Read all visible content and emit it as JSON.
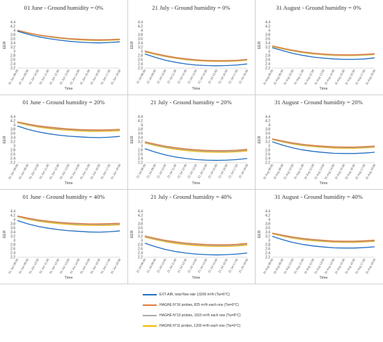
{
  "legend": {
    "items": [
      {
        "label": "EXT-AIR, total flow rate 13200 m³/h (Tw=6°C)",
        "color": "#1f6cc1"
      },
      {
        "label": "HAGHE N°16 probes, 825 m³/h each one (Tw=6°C)",
        "color": "#e07b3a"
      },
      {
        "label": "HAGHE N°13 probes, 1015 m³/h each one (Tw=6°C)",
        "color": "#a9a9a9"
      },
      {
        "label": "HAGHE N°11 probes, 1200 m³/h each one (Tw=6°C)",
        "color": "#f2b800"
      }
    ]
  },
  "chart_data": [
    {
      "type": "line",
      "title": "01   June - Ground humidity = 0%",
      "xlabel": "Time",
      "ylabel": "EER",
      "ylim": [
        2.2,
        4.4
      ],
      "categories": [
        "01 Jun 08:00",
        "01 Jun 09:00",
        "01 Jun 10:00",
        "01 Jun 11:00",
        "01 Jun 12:00",
        "01 Jun 13:00",
        "01 Jun 14:00",
        "01 Jun 15:00",
        "01 Jun 16:00",
        "01 Jun 17:00",
        "01 Jun 18:00"
      ],
      "series": [
        {
          "values": [
            3.97,
            3.83,
            3.71,
            3.62,
            3.55,
            3.49,
            3.45,
            3.42,
            3.41,
            3.43,
            3.46
          ]
        },
        {
          "values": [
            4.02,
            3.9,
            3.8,
            3.73,
            3.67,
            3.62,
            3.59,
            3.57,
            3.56,
            3.57,
            3.59
          ]
        },
        {
          "values": [
            4.01,
            3.89,
            3.79,
            3.71,
            3.65,
            3.6,
            3.57,
            3.55,
            3.54,
            3.55,
            3.57
          ]
        },
        {
          "values": [
            4.0,
            3.88,
            3.78,
            3.7,
            3.64,
            3.59,
            3.55,
            3.53,
            3.52,
            3.53,
            3.55
          ]
        }
      ]
    },
    {
      "type": "line",
      "title": "21   July - Ground humidity = 0%",
      "xlabel": "Time",
      "ylabel": "EER",
      "ylim": [
        2.2,
        4.4
      ],
      "categories": [
        "21 Jul 08:00",
        "21 Jul 09:00",
        "21 Jul 10:00",
        "21 Jul 11:00",
        "21 Jul 12:00",
        "21 Jul 13:00",
        "21 Jul 14:00",
        "21 Jul 15:00",
        "21 Jul 16:00",
        "21 Jul 17:00",
        "21 Jul 18:00"
      ],
      "series": [
        {
          "values": [
            2.88,
            2.72,
            2.58,
            2.48,
            2.4,
            2.35,
            2.32,
            2.31,
            2.32,
            2.35,
            2.4
          ]
        },
        {
          "values": [
            3.02,
            2.9,
            2.8,
            2.71,
            2.65,
            2.6,
            2.57,
            2.56,
            2.56,
            2.58,
            2.62
          ]
        },
        {
          "values": [
            3.0,
            2.88,
            2.77,
            2.69,
            2.62,
            2.58,
            2.55,
            2.54,
            2.54,
            2.56,
            2.6
          ]
        },
        {
          "values": [
            2.98,
            2.86,
            2.75,
            2.67,
            2.6,
            2.56,
            2.53,
            2.52,
            2.52,
            2.54,
            2.58
          ]
        }
      ]
    },
    {
      "type": "line",
      "title": "31   August - Ground humidity = 0%",
      "xlabel": "Time",
      "ylabel": "EER",
      "ylim": [
        2.2,
        4.4
      ],
      "categories": [
        "31 Aug 08:00",
        "31 Aug 09:00",
        "31 Aug 10:00",
        "31 Aug 11:00",
        "31 Aug 12:00",
        "31 Aug 13:00",
        "31 Aug 14:00",
        "31 Aug 15:00",
        "31 Aug 16:00",
        "31 Aug 17:00",
        "31 Aug 18:00"
      ],
      "series": [
        {
          "values": [
            3.18,
            3.04,
            2.91,
            2.81,
            2.73,
            2.68,
            2.64,
            2.62,
            2.62,
            2.64,
            2.69
          ]
        },
        {
          "values": [
            3.27,
            3.16,
            3.06,
            2.98,
            2.92,
            2.88,
            2.85,
            2.84,
            2.84,
            2.86,
            2.89
          ]
        },
        {
          "values": [
            3.25,
            3.14,
            3.04,
            2.96,
            2.9,
            2.86,
            2.83,
            2.82,
            2.82,
            2.84,
            2.87
          ]
        },
        {
          "values": [
            3.23,
            3.12,
            3.02,
            2.94,
            2.88,
            2.84,
            2.81,
            2.8,
            2.8,
            2.82,
            2.85
          ]
        }
      ]
    },
    {
      "type": "line",
      "title": "01   June - Ground humidity = 20%",
      "xlabel": "Time",
      "ylabel": "EER",
      "ylim": [
        2.2,
        4.4
      ],
      "categories": [
        "01 Jun 08:00",
        "01 Jun 09:00",
        "01 Jun 10:00",
        "01 Jun 11:00",
        "01 Jun 12:00",
        "01 Jun 13:00",
        "01 Jun 14:00",
        "01 Jun 15:00",
        "01 Jun 16:00",
        "01 Jun 17:00",
        "01 Jun 18:00"
      ],
      "series": [
        {
          "values": [
            3.96,
            3.8,
            3.68,
            3.59,
            3.52,
            3.47,
            3.44,
            3.41,
            3.4,
            3.42,
            3.46
          ]
        },
        {
          "values": [
            4.16,
            4.06,
            3.97,
            3.91,
            3.86,
            3.82,
            3.79,
            3.78,
            3.77,
            3.78,
            3.8
          ]
        },
        {
          "values": [
            4.14,
            4.03,
            3.94,
            3.88,
            3.82,
            3.79,
            3.76,
            3.74,
            3.74,
            3.75,
            3.77
          ]
        },
        {
          "values": [
            4.12,
            4.0,
            3.91,
            3.84,
            3.79,
            3.75,
            3.72,
            3.7,
            3.7,
            3.71,
            3.73
          ]
        }
      ]
    },
    {
      "type": "line",
      "title": "21   July - Ground humidity = 20%",
      "xlabel": "Time",
      "ylabel": "EER",
      "ylim": [
        2.2,
        4.4
      ],
      "categories": [
        "21 Jul 08:00",
        "21 Jul 09:00",
        "21 Jul 10:00",
        "21 Jul 11:00",
        "21 Jul 12:00",
        "21 Jul 13:00",
        "21 Jul 14:00",
        "21 Jul 15:00",
        "21 Jul 16:00",
        "21 Jul 17:00",
        "21 Jul 18:00"
      ],
      "series": [
        {
          "values": [
            2.87,
            2.71,
            2.57,
            2.47,
            2.4,
            2.35,
            2.32,
            2.31,
            2.32,
            2.35,
            2.4
          ]
        },
        {
          "values": [
            3.2,
            3.09,
            2.99,
            2.92,
            2.86,
            2.82,
            2.79,
            2.78,
            2.78,
            2.8,
            2.84
          ]
        },
        {
          "values": [
            3.17,
            3.05,
            2.95,
            2.88,
            2.82,
            2.78,
            2.75,
            2.74,
            2.74,
            2.76,
            2.8
          ]
        },
        {
          "values": [
            3.14,
            3.02,
            2.92,
            2.84,
            2.78,
            2.74,
            2.71,
            2.7,
            2.7,
            2.72,
            2.76
          ]
        }
      ]
    },
    {
      "type": "line",
      "title": "31   August - Ground humidity = 20%",
      "xlabel": "Time",
      "ylabel": "EER",
      "ylim": [
        2.2,
        4.4
      ],
      "categories": [
        "31 Aug 08:00",
        "31 Aug 09:00",
        "31 Aug 10:00",
        "31 Aug 11:00",
        "31 Aug 12:00",
        "31 Aug 13:00",
        "31 Aug 14:00",
        "31 Aug 15:00",
        "31 Aug 16:00",
        "31 Aug 17:00",
        "31 Aug 18:00"
      ],
      "series": [
        {
          "values": [
            3.2,
            3.04,
            2.91,
            2.81,
            2.74,
            2.69,
            2.65,
            2.64,
            2.64,
            2.66,
            2.7
          ]
        },
        {
          "values": [
            3.34,
            3.24,
            3.15,
            3.08,
            3.03,
            2.99,
            2.96,
            2.95,
            2.95,
            2.97,
            3.0
          ]
        },
        {
          "values": [
            3.32,
            3.21,
            3.12,
            3.05,
            3.0,
            2.96,
            2.93,
            2.92,
            2.92,
            2.94,
            2.97
          ]
        },
        {
          "values": [
            3.3,
            3.19,
            3.09,
            3.02,
            2.97,
            2.93,
            2.9,
            2.89,
            2.89,
            2.91,
            2.94
          ]
        }
      ]
    },
    {
      "type": "line",
      "title": "01   June - Ground humidity = 40%",
      "xlabel": "Time",
      "ylabel": "EER",
      "ylim": [
        2.2,
        4.4
      ],
      "categories": [
        "01 Jun 08:00",
        "01 Jun 09:00",
        "01 Jun 10:00",
        "01 Jun 11:00",
        "01 Jun 12:00",
        "01 Jun 13:00",
        "01 Jun 14:00",
        "01 Jun 15:00",
        "01 Jun 16:00",
        "01 Jun 17:00",
        "01 Jun 18:00"
      ],
      "series": [
        {
          "values": [
            3.96,
            3.8,
            3.68,
            3.59,
            3.52,
            3.47,
            3.44,
            3.41,
            3.4,
            3.42,
            3.46
          ]
        },
        {
          "values": [
            4.18,
            4.08,
            3.99,
            3.93,
            3.88,
            3.84,
            3.82,
            3.8,
            3.8,
            3.81,
            3.83
          ]
        },
        {
          "values": [
            4.16,
            4.05,
            3.96,
            3.9,
            3.85,
            3.81,
            3.78,
            3.77,
            3.76,
            3.77,
            3.79
          ]
        },
        {
          "values": [
            4.14,
            4.02,
            3.93,
            3.86,
            3.81,
            3.77,
            3.74,
            3.73,
            3.72,
            3.73,
            3.75
          ]
        }
      ]
    },
    {
      "type": "line",
      "title": "21   July - Ground humidity = 40%",
      "xlabel": "Time",
      "ylabel": "EER",
      "ylim": [
        2.2,
        4.4
      ],
      "categories": [
        "21 Jul 08:00",
        "21 Jul 09:00",
        "21 Jul 10:00",
        "21 Jul 11:00",
        "21 Jul 12:00",
        "21 Jul 13:00",
        "21 Jul 14:00",
        "21 Jul 15:00",
        "21 Jul 16:00",
        "21 Jul 17:00",
        "21 Jul 18:00"
      ],
      "series": [
        {
          "values": [
            2.87,
            2.71,
            2.57,
            2.47,
            2.4,
            2.35,
            2.32,
            2.31,
            2.32,
            2.35,
            2.4
          ]
        },
        {
          "values": [
            3.22,
            3.11,
            3.01,
            2.94,
            2.88,
            2.84,
            2.81,
            2.8,
            2.8,
            2.82,
            2.86
          ]
        },
        {
          "values": [
            3.19,
            3.07,
            2.97,
            2.9,
            2.84,
            2.8,
            2.77,
            2.76,
            2.76,
            2.78,
            2.82
          ]
        },
        {
          "values": [
            3.16,
            3.04,
            2.94,
            2.86,
            2.8,
            2.76,
            2.73,
            2.72,
            2.72,
            2.74,
            2.78
          ]
        }
      ]
    },
    {
      "type": "line",
      "title": "31   August - Ground humidity = 40%",
      "xlabel": "Time",
      "ylabel": "EER",
      "ylim": [
        2.2,
        4.4
      ],
      "categories": [
        "31 Aug 08:00",
        "31 Aug 09:00",
        "31 Aug 10:00",
        "31 Aug 11:00",
        "31 Aug 12:00",
        "31 Aug 13:00",
        "31 Aug 14:00",
        "31 Aug 15:00",
        "31 Aug 16:00",
        "31 Aug 17:00",
        "31 Aug 18:00"
      ],
      "series": [
        {
          "values": [
            3.2,
            3.04,
            2.91,
            2.81,
            2.74,
            2.69,
            2.65,
            2.64,
            2.64,
            2.66,
            2.7
          ]
        },
        {
          "values": [
            3.36,
            3.26,
            3.17,
            3.1,
            3.05,
            3.01,
            2.98,
            2.97,
            2.97,
            2.99,
            3.02
          ]
        },
        {
          "values": [
            3.34,
            3.23,
            3.14,
            3.07,
            3.02,
            2.98,
            2.95,
            2.94,
            2.94,
            2.96,
            2.99
          ]
        },
        {
          "values": [
            3.32,
            3.21,
            3.11,
            3.04,
            2.99,
            2.95,
            2.92,
            2.91,
            2.91,
            2.93,
            2.96
          ]
        }
      ]
    }
  ]
}
